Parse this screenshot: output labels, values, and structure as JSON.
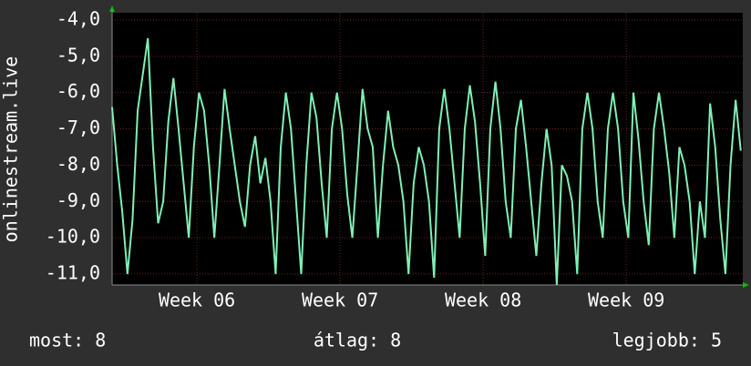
{
  "chart_data": {
    "type": "line",
    "y_label": "onlinestream.live",
    "x": [
      0,
      0.25,
      0.5,
      0.75,
      1,
      1.25,
      1.5,
      1.75,
      2,
      2.25,
      2.5,
      2.75,
      3,
      3.25,
      3.5,
      3.75,
      4,
      4.25,
      4.5,
      4.75,
      5,
      5.25,
      5.5,
      5.75,
      6,
      6.25,
      6.5,
      6.75,
      7,
      7.25,
      7.5,
      7.75,
      8,
      8.25,
      8.5,
      8.75,
      9,
      9.25,
      9.5,
      9.75,
      10,
      10.25,
      10.5,
      10.75,
      11,
      11.25,
      11.5,
      11.75,
      12,
      12.25,
      12.5,
      12.75,
      13,
      13.25,
      13.5,
      13.75,
      14,
      14.25,
      14.5,
      14.75,
      15,
      15.25,
      15.5,
      15.75,
      16,
      16.25,
      16.5,
      16.75,
      17,
      17.25,
      17.5,
      17.75,
      18,
      18.25,
      18.5,
      18.75,
      19,
      19.25,
      19.5,
      19.75,
      20,
      20.25,
      20.5,
      20.75,
      21,
      21.25,
      21.5,
      21.75,
      22,
      22.25,
      22.5,
      22.75,
      23,
      23.25,
      23.5,
      23.75,
      24,
      24.25,
      24.5,
      24.75,
      25,
      25.25,
      25.5,
      25.75,
      26,
      26.25,
      26.5,
      26.75,
      27,
      27.25,
      27.5,
      27.75,
      28,
      28.25,
      28.5,
      28.75,
      29,
      29.25,
      29.5,
      29.75,
      30,
      30.25,
      30.5,
      30.75
    ],
    "series": [
      {
        "color": "#7ff0b4",
        "values": [
          -6.4,
          -8.0,
          -9.3,
          -11.0,
          -9.5,
          -6.5,
          -5.5,
          -4.5,
          -7.5,
          -9.6,
          -9.0,
          -6.8,
          -5.6,
          -7.0,
          -8.5,
          -10.0,
          -7.5,
          -6.0,
          -6.5,
          -8.0,
          -10.0,
          -8.0,
          -5.9,
          -7.0,
          -8.0,
          -9.0,
          -9.7,
          -8.0,
          -7.2,
          -8.5,
          -7.8,
          -9.0,
          -11.0,
          -7.5,
          -6.0,
          -7.0,
          -9.0,
          -11.0,
          -8.0,
          -6.0,
          -6.7,
          -8.5,
          -10.0,
          -7.0,
          -6.0,
          -7.0,
          -8.8,
          -10.0,
          -8.0,
          -5.9,
          -7.0,
          -7.5,
          -10.0,
          -8.0,
          -6.5,
          -7.5,
          -8.0,
          -9.0,
          -11.0,
          -8.5,
          -7.5,
          -8.0,
          -9.0,
          -11.1,
          -7.0,
          -5.9,
          -7.0,
          -8.5,
          -10.0,
          -7.0,
          -5.8,
          -6.8,
          -8.5,
          -10.5,
          -7.0,
          -5.7,
          -7.0,
          -9.0,
          -10.0,
          -7.0,
          -6.2,
          -7.5,
          -9.0,
          -10.5,
          -8.5,
          -7.0,
          -8.0,
          -11.3,
          -8.0,
          -8.3,
          -9.0,
          -11.0,
          -7.0,
          -6.0,
          -7.0,
          -9.0,
          -10.0,
          -7.0,
          -6.0,
          -7.0,
          -9.0,
          -10.0,
          -6.0,
          -7.3,
          -9.0,
          -10.2,
          -7.0,
          -6.0,
          -7.0,
          -8.2,
          -10.0,
          -7.5,
          -8.0,
          -9.0,
          -11.0,
          -9.0,
          -10.0,
          -6.3,
          -7.5,
          -9.5,
          -11.0,
          -8.0,
          -6.2,
          -7.6
        ]
      }
    ],
    "xlim": [
      0,
      30.85
    ],
    "xticks": [
      {
        "value": 4.15,
        "label": "Week 06"
      },
      {
        "value": 11.15,
        "label": "Week 07"
      },
      {
        "value": 18.15,
        "label": "Week 08"
      },
      {
        "value": 25.15,
        "label": "Week 09"
      }
    ],
    "ylim": [
      -11.3,
      -3.8
    ],
    "yticks": [
      {
        "value": -4,
        "label": "-4,0"
      },
      {
        "value": -5,
        "label": "-5,0"
      },
      {
        "value": -6,
        "label": "-6,0"
      },
      {
        "value": -7,
        "label": "-7,0"
      },
      {
        "value": -8,
        "label": "-8,0"
      },
      {
        "value": -9,
        "label": "-9,0"
      },
      {
        "value": -10,
        "label": "-10,0"
      },
      {
        "value": -11,
        "label": "-11,0"
      }
    ],
    "grid": true,
    "footer": [
      "most: 8",
      "átlag: 8",
      "legjobb: 5"
    ]
  }
}
